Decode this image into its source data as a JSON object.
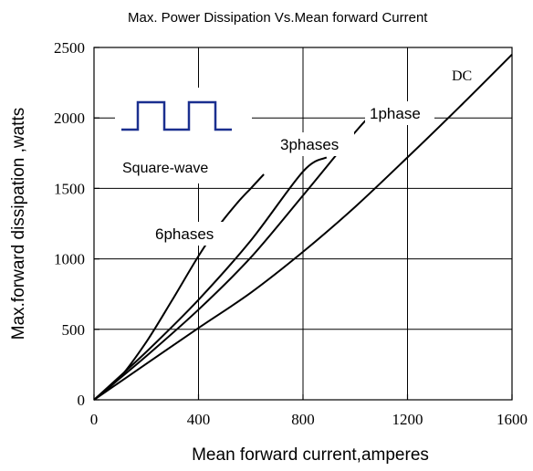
{
  "chart_data": {
    "type": "line",
    "title": "Max. Power Dissipation Vs.Mean forward Current",
    "xlabel": "Mean forward current,amperes",
    "ylabel": "Max.forward dissipation ,watts",
    "xlim": [
      0,
      1600
    ],
    "ylim": [
      0,
      2500
    ],
    "xticks": [
      0,
      400,
      800,
      1200,
      1600
    ],
    "xtick_labels": [
      "0",
      "400",
      "800",
      "1200",
      "1600"
    ],
    "yticks": [
      0,
      500,
      1000,
      1500,
      2000,
      2500
    ],
    "ytick_labels": [
      "0",
      "500",
      "1000",
      "1500",
      "2000",
      "2500"
    ],
    "grid": true,
    "legend": {
      "label": "Square-wave",
      "placement": "top-left"
    },
    "series": [
      {
        "name": "6phases",
        "x": [
          0,
          100,
          200,
          300,
          400,
          480,
          550,
          600,
          650
        ],
        "y": [
          0,
          160,
          410,
          710,
          1020,
          1240,
          1400,
          1500,
          1600
        ]
      },
      {
        "name": "3phases",
        "x": [
          0,
          200,
          400,
          600,
          800,
          890
        ],
        "y": [
          0,
          340,
          710,
          1130,
          1620,
          1720
        ]
      },
      {
        "name": "1phase",
        "x": [
          0,
          200,
          400,
          600,
          800,
          1000,
          1100
        ],
        "y": [
          0,
          310,
          640,
          1010,
          1450,
          1900,
          2100
        ]
      },
      {
        "name": "DC",
        "x": [
          0,
          200,
          400,
          600,
          800,
          1000,
          1200,
          1400,
          1600
        ],
        "y": [
          0,
          255,
          510,
          760,
          1050,
          1370,
          1720,
          2080,
          2450
        ]
      }
    ]
  }
}
